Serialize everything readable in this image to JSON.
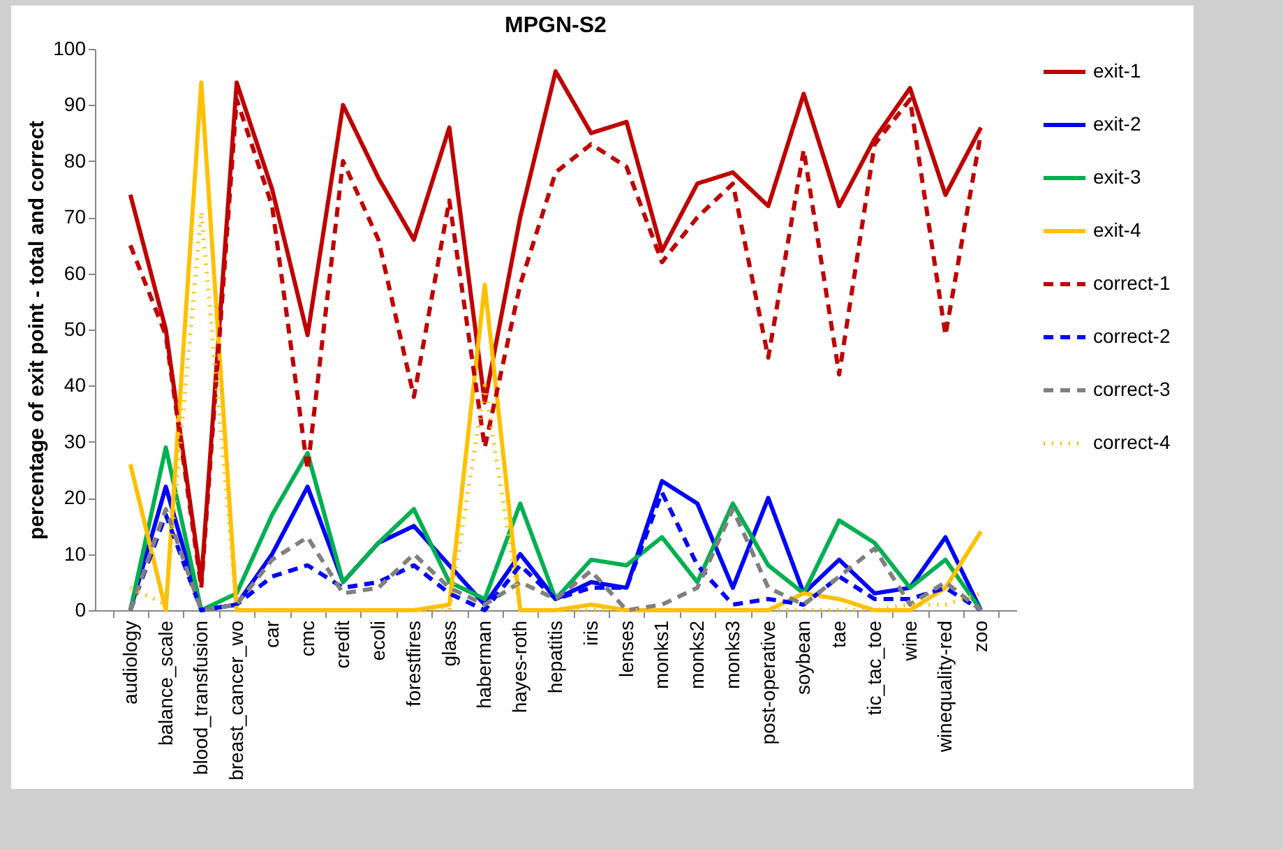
{
  "chart_data": {
    "type": "line",
    "title": "MPGN-S2",
    "ylabel": "percentage of exit point - total and correct",
    "categories": [
      "audiology",
      "balance_scale",
      "blood_transfusion",
      "breast_cancer_wo",
      "car",
      "cmc",
      "credit",
      "ecoli",
      "forestfires",
      "glass",
      "haberman",
      "hayes-roth",
      "hepatitis",
      "iris",
      "lenses",
      "monks1",
      "monks2",
      "monks3",
      "post-operative",
      "soybean",
      "tae",
      "tic_tac_toe",
      "wine",
      "winequality-red",
      "zoo"
    ],
    "ylim": [
      0,
      100
    ],
    "yticks": [
      0,
      10,
      20,
      30,
      40,
      50,
      60,
      70,
      80,
      90,
      100
    ],
    "grid": false,
    "legend": "right",
    "series": [
      {
        "name": "exit-1",
        "color": "#c00000",
        "line_style": "solid",
        "values": [
          74,
          50,
          5,
          94,
          75,
          49,
          90,
          77,
          66,
          86,
          37,
          70,
          96,
          85,
          87,
          64,
          76,
          78,
          72,
          92,
          72,
          84,
          93,
          74,
          86
        ]
      },
      {
        "name": "exit-2",
        "color": "#0000ff",
        "line_style": "solid",
        "values": [
          0,
          22,
          0,
          1,
          10,
          22,
          5,
          12,
          15,
          8,
          1,
          10,
          2,
          5,
          4,
          23,
          19,
          4,
          20,
          3,
          9,
          3,
          4,
          13,
          0
        ]
      },
      {
        "name": "exit-3",
        "color": "#00b050",
        "line_style": "solid",
        "values": [
          0,
          29,
          0,
          3,
          17,
          28,
          5,
          12,
          18,
          5,
          2,
          19,
          2,
          9,
          8,
          13,
          5,
          19,
          8,
          3,
          16,
          12,
          4,
          9,
          0
        ]
      },
      {
        "name": "exit-4",
        "color": "#ffc000",
        "line_style": "solid",
        "values": [
          26,
          0,
          94,
          0,
          0,
          0,
          0,
          0,
          0,
          1,
          58,
          0,
          0,
          1,
          0,
          0,
          0,
          0,
          0,
          3,
          2,
          0,
          0,
          4,
          14
        ]
      },
      {
        "name": "correct-1",
        "color": "#c00000",
        "line_style": "dashed",
        "values": [
          65,
          49,
          4,
          91,
          72,
          25,
          80,
          66,
          38,
          73,
          29,
          58,
          78,
          83,
          79,
          62,
          70,
          76,
          45,
          82,
          42,
          83,
          91,
          49,
          85
        ]
      },
      {
        "name": "correct-2",
        "color": "#0000ff",
        "line_style": "dashed",
        "values": [
          0,
          17,
          0,
          1,
          6,
          8,
          4,
          5,
          8,
          3,
          0,
          8,
          2,
          4,
          4,
          21,
          8,
          1,
          2,
          1,
          6,
          2,
          2,
          4,
          0
        ]
      },
      {
        "name": "correct-3",
        "color": "#808080",
        "line_style": "dashed",
        "values": [
          0,
          18,
          0,
          1,
          9,
          13,
          3,
          4,
          10,
          4,
          1,
          5,
          2,
          7,
          0,
          1,
          4,
          18,
          4,
          1,
          6,
          11,
          1,
          5,
          0
        ]
      },
      {
        "name": "correct-4",
        "color": "#ffc000",
        "line_style": "dotted",
        "values": [
          4,
          1,
          71,
          0,
          0,
          0,
          0,
          0,
          0,
          0,
          40,
          0,
          0,
          0,
          0,
          0,
          0,
          0,
          0,
          0,
          0,
          0,
          1,
          1,
          3
        ]
      }
    ]
  }
}
